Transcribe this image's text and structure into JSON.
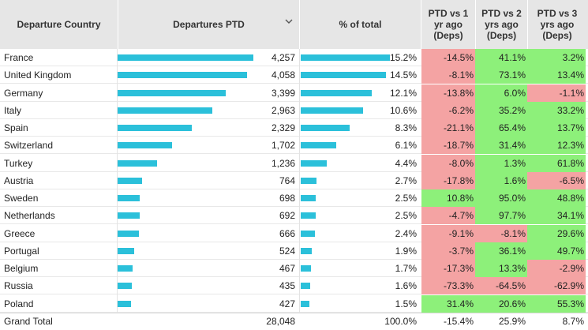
{
  "colors": {
    "bar": "#2bc0da",
    "negative": "#f4a3a3",
    "positive": "#8df07a",
    "header_bg": "#e6e6e6"
  },
  "header": {
    "country": "Departure Country",
    "departures": "Departures PTD",
    "pct": "% of total",
    "y1": "PTD vs 1 yr ago (Deps)",
    "y2": "PTD vs 2 yrs ago (Deps)",
    "y3": "PTD vs 3 yrs ago (Deps)",
    "sort_icon": "chevron-down-icon"
  },
  "rows": [
    {
      "country": "France",
      "departures": "4,257",
      "dep_value": 4257,
      "pct": "15.2%",
      "pct_value": 15.2,
      "y1": "-14.5%",
      "y1_value": -14.5,
      "y2": "41.1%",
      "y2_value": 41.1,
      "y3": "3.2%",
      "y3_value": 3.2
    },
    {
      "country": "United Kingdom",
      "departures": "4,058",
      "dep_value": 4058,
      "pct": "14.5%",
      "pct_value": 14.5,
      "y1": "-8.1%",
      "y1_value": -8.1,
      "y2": "73.1%",
      "y2_value": 73.1,
      "y3": "13.4%",
      "y3_value": 13.4
    },
    {
      "country": "Germany",
      "departures": "3,399",
      "dep_value": 3399,
      "pct": "12.1%",
      "pct_value": 12.1,
      "y1": "-13.8%",
      "y1_value": -13.8,
      "y2": "6.0%",
      "y2_value": 6.0,
      "y3": "-1.1%",
      "y3_value": -1.1
    },
    {
      "country": "Italy",
      "departures": "2,963",
      "dep_value": 2963,
      "pct": "10.6%",
      "pct_value": 10.6,
      "y1": "-6.2%",
      "y1_value": -6.2,
      "y2": "35.2%",
      "y2_value": 35.2,
      "y3": "33.2%",
      "y3_value": 33.2
    },
    {
      "country": "Spain",
      "departures": "2,329",
      "dep_value": 2329,
      "pct": "8.3%",
      "pct_value": 8.3,
      "y1": "-21.1%",
      "y1_value": -21.1,
      "y2": "65.4%",
      "y2_value": 65.4,
      "y3": "13.7%",
      "y3_value": 13.7
    },
    {
      "country": "Switzerland",
      "departures": "1,702",
      "dep_value": 1702,
      "pct": "6.1%",
      "pct_value": 6.1,
      "y1": "-18.7%",
      "y1_value": -18.7,
      "y2": "31.4%",
      "y2_value": 31.4,
      "y3": "12.3%",
      "y3_value": 12.3
    },
    {
      "country": "Turkey",
      "departures": "1,236",
      "dep_value": 1236,
      "pct": "4.4%",
      "pct_value": 4.4,
      "y1": "-8.0%",
      "y1_value": -8.0,
      "y2": "1.3%",
      "y2_value": 1.3,
      "y3": "61.8%",
      "y3_value": 61.8
    },
    {
      "country": "Austria",
      "departures": "764",
      "dep_value": 764,
      "pct": "2.7%",
      "pct_value": 2.7,
      "y1": "-17.8%",
      "y1_value": -17.8,
      "y2": "1.6%",
      "y2_value": 1.6,
      "y3": "-6.5%",
      "y3_value": -6.5
    },
    {
      "country": "Sweden",
      "departures": "698",
      "dep_value": 698,
      "pct": "2.5%",
      "pct_value": 2.5,
      "y1": "10.8%",
      "y1_value": 10.8,
      "y2": "95.0%",
      "y2_value": 95.0,
      "y3": "48.8%",
      "y3_value": 48.8
    },
    {
      "country": "Netherlands",
      "departures": "692",
      "dep_value": 692,
      "pct": "2.5%",
      "pct_value": 2.5,
      "y1": "-4.7%",
      "y1_value": -4.7,
      "y2": "97.7%",
      "y2_value": 97.7,
      "y3": "34.1%",
      "y3_value": 34.1
    },
    {
      "country": "Greece",
      "departures": "666",
      "dep_value": 666,
      "pct": "2.4%",
      "pct_value": 2.4,
      "y1": "-9.1%",
      "y1_value": -9.1,
      "y2": "-8.1%",
      "y2_value": -8.1,
      "y3": "29.6%",
      "y3_value": 29.6
    },
    {
      "country": "Portugal",
      "departures": "524",
      "dep_value": 524,
      "pct": "1.9%",
      "pct_value": 1.9,
      "y1": "-3.7%",
      "y1_value": -3.7,
      "y2": "36.1%",
      "y2_value": 36.1,
      "y3": "49.7%",
      "y3_value": 49.7
    },
    {
      "country": "Belgium",
      "departures": "467",
      "dep_value": 467,
      "pct": "1.7%",
      "pct_value": 1.7,
      "y1": "-17.3%",
      "y1_value": -17.3,
      "y2": "13.3%",
      "y2_value": 13.3,
      "y3": "-2.9%",
      "y3_value": -2.9
    },
    {
      "country": "Russia",
      "departures": "435",
      "dep_value": 435,
      "pct": "1.6%",
      "pct_value": 1.6,
      "y1": "-73.3%",
      "y1_value": -73.3,
      "y2": "-64.5%",
      "y2_value": -64.5,
      "y3": "-62.9%",
      "y3_value": -62.9
    },
    {
      "country": "Poland",
      "departures": "427",
      "dep_value": 427,
      "pct": "1.5%",
      "pct_value": 1.5,
      "y1": "31.4%",
      "y1_value": 31.4,
      "y2": "20.6%",
      "y2_value": 20.6,
      "y3": "55.3%",
      "y3_value": 55.3
    }
  ],
  "total": {
    "label": "Grand Total",
    "departures": "28,048",
    "pct": "100.0%",
    "y1": "-15.4%",
    "y2": "25.9%",
    "y3": "8.7%"
  }
}
